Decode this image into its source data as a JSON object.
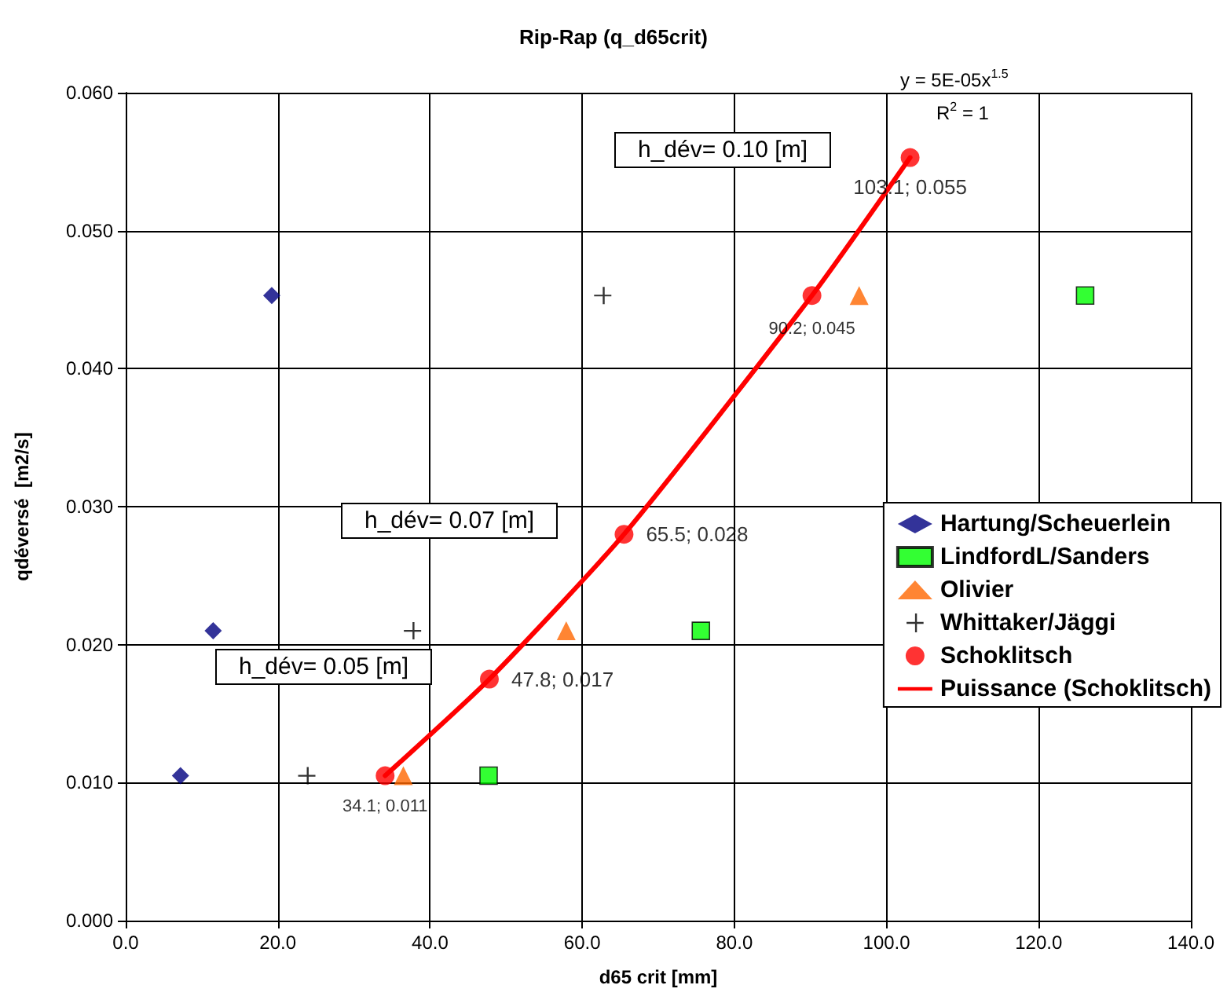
{
  "chart_data": {
    "type": "scatter",
    "title": "Rip-Rap (q_d65crit)",
    "xlabel": "d65 crit [mm]",
    "ylabel": "qdéversé  [m2/s]",
    "xlim": [
      0,
      140
    ],
    "xticks": [
      {
        "value": 0,
        "label": "0.0"
      },
      {
        "value": 20,
        "label": "20.0"
      },
      {
        "value": 40,
        "label": "40.0"
      },
      {
        "value": 60,
        "label": "60.0"
      },
      {
        "value": 80,
        "label": "80.0"
      },
      {
        "value": 100,
        "label": "100.0"
      },
      {
        "value": 120,
        "label": "120.0"
      },
      {
        "value": 140,
        "label": "140.0"
      }
    ],
    "ylim": [
      0,
      0.06
    ],
    "yticks": [
      {
        "value": 0,
        "label": "0.000"
      },
      {
        "value": 0.01,
        "label": "0.010"
      },
      {
        "value": 0.02,
        "label": "0.020"
      },
      {
        "value": 0.03,
        "label": "0.030"
      },
      {
        "value": 0.04,
        "label": "0.040"
      },
      {
        "value": 0.05,
        "label": "0.050"
      },
      {
        "value": 0.06,
        "label": "0.060"
      }
    ],
    "grid": true,
    "legend": "right",
    "series": [
      {
        "name": "Hartung/Scheuerlein",
        "color": "#000080",
        "marker": "diamond",
        "x": [
          7.2,
          11.5,
          19.2
        ],
        "values": [
          0.0105,
          0.021,
          0.0453
        ]
      },
      {
        "name": "LindfordL/Sanders",
        "color": "#00ff00",
        "marker": "square",
        "x": [
          47.7,
          75.6,
          126.1
        ],
        "values": [
          0.0105,
          0.021,
          0.0453
        ]
      },
      {
        "name": "Olivier",
        "color": "#ff6600",
        "marker": "triangle",
        "x": [
          36.5,
          57.9,
          96.4
        ],
        "values": [
          0.0105,
          0.021,
          0.0453
        ]
      },
      {
        "name": "Whittaker/Jäggi",
        "color": "#000000",
        "marker": "cross",
        "x": [
          23.8,
          37.7,
          62.7
        ],
        "values": [
          0.0105,
          0.021,
          0.0453
        ]
      },
      {
        "name": "Schoklitsch",
        "color": "#ff0000",
        "marker": "circle",
        "x": [
          34.1,
          47.8,
          65.5,
          90.2,
          103.1
        ],
        "values": [
          0.0105,
          0.0175,
          0.028,
          0.0453,
          0.0553
        ],
        "value_labels": [
          "34.1; 0.011",
          "47.8; 0.017",
          "65.5; 0.028",
          "90.2; 0.045",
          "103.1; 0.055"
        ]
      },
      {
        "name": "Puissance (Schoklitsch)",
        "type": "line",
        "color": "#ff0000",
        "marker": "none",
        "line_style": "solid",
        "x": [
          34.1,
          47.8,
          65.5,
          90.2,
          103.1
        ],
        "values": [
          0.0105,
          0.0175,
          0.028,
          0.0453,
          0.0553
        ]
      }
    ],
    "annotations": [
      "h_dév= 0.10 [m]",
      "h_dév= 0.07 [m]",
      "h_dév= 0.05 [m]",
      "y = 5E-05x$^{1.5}$",
      "R$^{2}$ = 1"
    ]
  }
}
